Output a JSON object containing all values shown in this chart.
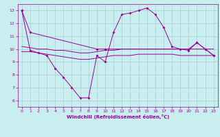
{
  "title": "",
  "xlabel": "Windchill (Refroidissement éolien,°C)",
  "background_color": "#c8eef0",
  "grid_color": "#aacccc",
  "line_color": "#990099",
  "xlim": [
    -0.5,
    23.5
  ],
  "ylim": [
    5.5,
    13.5
  ],
  "xticks": [
    0,
    1,
    2,
    3,
    4,
    5,
    6,
    7,
    8,
    9,
    10,
    11,
    12,
    13,
    14,
    15,
    16,
    17,
    18,
    19,
    20,
    21,
    22,
    23
  ],
  "yticks": [
    6,
    7,
    8,
    9,
    10,
    11,
    12,
    13
  ],
  "line1_x": [
    0,
    1,
    9,
    10,
    20,
    21,
    22,
    23
  ],
  "line1_y": [
    13.0,
    11.3,
    10.0,
    10.0,
    10.0,
    10.5,
    10.0,
    9.5
  ],
  "line2_x": [
    0,
    1,
    2,
    3,
    4,
    5,
    6,
    7,
    8,
    9,
    10,
    11,
    12,
    13,
    14,
    15,
    16,
    17,
    18,
    19,
    20,
    21,
    22,
    23
  ],
  "line2_y": [
    13.0,
    9.9,
    9.7,
    9.5,
    8.5,
    7.8,
    7.0,
    6.2,
    6.2,
    9.5,
    9.0,
    11.3,
    12.7,
    12.8,
    13.0,
    13.2,
    12.7,
    11.7,
    10.2,
    10.0,
    9.9,
    10.5,
    10.0,
    9.5
  ],
  "line3_x": [
    0,
    1,
    2,
    3,
    4,
    5,
    6,
    7,
    8,
    9,
    10,
    11,
    12,
    13,
    14,
    15,
    16,
    17,
    18,
    19,
    20,
    21,
    22,
    23
  ],
  "line3_y": [
    9.8,
    9.8,
    9.7,
    9.6,
    9.5,
    9.4,
    9.3,
    9.2,
    9.2,
    9.3,
    9.4,
    9.5,
    9.5,
    9.5,
    9.6,
    9.6,
    9.6,
    9.6,
    9.6,
    9.5,
    9.5,
    9.5,
    9.5,
    9.5
  ],
  "line4_x": [
    0,
    1,
    2,
    3,
    4,
    5,
    6,
    7,
    8,
    9,
    10,
    11,
    12,
    13,
    14,
    15,
    16,
    17,
    18,
    19,
    20,
    21,
    22,
    23
  ],
  "line4_y": [
    10.2,
    10.1,
    10.0,
    10.0,
    9.9,
    9.9,
    9.8,
    9.7,
    9.7,
    9.8,
    9.9,
    9.9,
    10.0,
    10.0,
    10.0,
    10.0,
    10.0,
    10.0,
    10.0,
    10.0,
    10.0,
    10.0,
    10.0,
    10.0
  ]
}
